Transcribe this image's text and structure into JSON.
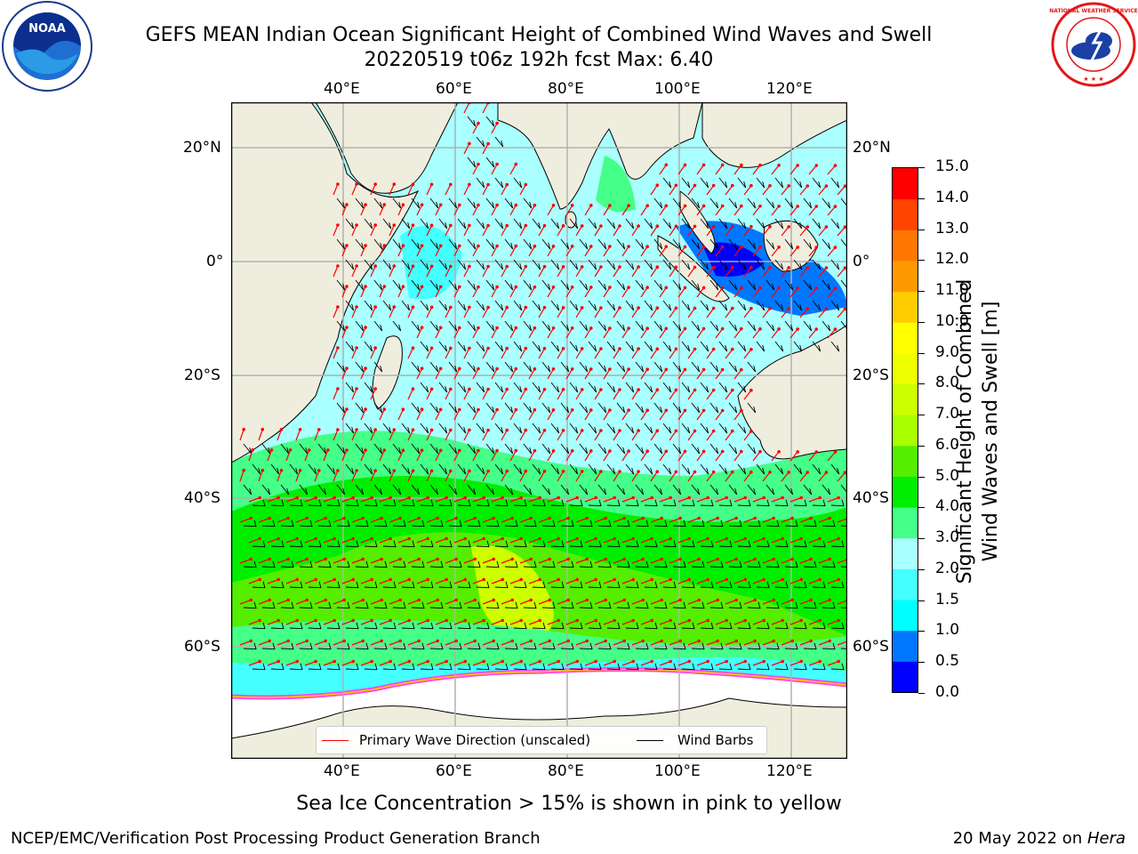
{
  "header": {
    "title_line1": "GEFS MEAN Indian Ocean Significant Height of Combined Wind Waves and Swell",
    "title_line2": "20220519 t06z 192h fcst   Max: 6.40"
  },
  "logos": {
    "left": {
      "name": "noaa-logo",
      "text": "NOAA"
    },
    "right": {
      "name": "nws-logo",
      "text": "NATIONAL WEATHER SERVICE"
    }
  },
  "map": {
    "lon_ticks_top": [
      "40°E",
      "60°E",
      "80°E",
      "100°E",
      "120°E"
    ],
    "lon_ticks_bottom": [
      "40°E",
      "60°E",
      "80°E",
      "100°E",
      "120°E"
    ],
    "lat_ticks_left": [
      "20°N",
      "0°",
      "20°S",
      "40°S",
      "60°S"
    ],
    "lat_ticks_right": [
      "20°N",
      "0°",
      "20°S",
      "40°S",
      "60°S"
    ],
    "colors": {
      "land": "#efeede",
      "ice_shelf": "#ffffff",
      "ice_edge": "#ff44ee",
      "wave_arrow": "#ff0000",
      "wind_barb": "#000000",
      "grid": "#b0b0b0"
    }
  },
  "colorbar": {
    "title_line1": "Significant Height of Combined",
    "title_line2": "Wind Waves and Swell [m]",
    "levels": [
      "0.0",
      "0.5",
      "1.0",
      "1.5",
      "2.0",
      "3.0",
      "4.0",
      "5.0",
      "6.0",
      "7.0",
      "8.0",
      "9.0",
      "10.0",
      "11.0",
      "12.0",
      "13.0",
      "14.0",
      "15.0"
    ],
    "colors": [
      "#0000ff",
      "#0077ff",
      "#00ffff",
      "#44ffff",
      "#aaffff",
      "#44ff88",
      "#00ee00",
      "#55ee00",
      "#aaff00",
      "#ccff00",
      "#eeff00",
      "#ffff00",
      "#ffcc00",
      "#ff9900",
      "#ff7700",
      "#ff4400",
      "#ff0000"
    ]
  },
  "legend": {
    "wave_label": "Primary Wave Direction (unscaled)",
    "wind_label": "Wind Barbs"
  },
  "caption": "Sea Ice Concentration > 15% is shown in pink to yellow",
  "footer": {
    "left": "NCEP/EMC/Verification Post Processing Product Generation Branch",
    "right_prefix": "20 May 2022 on ",
    "right_host": "Hera"
  }
}
